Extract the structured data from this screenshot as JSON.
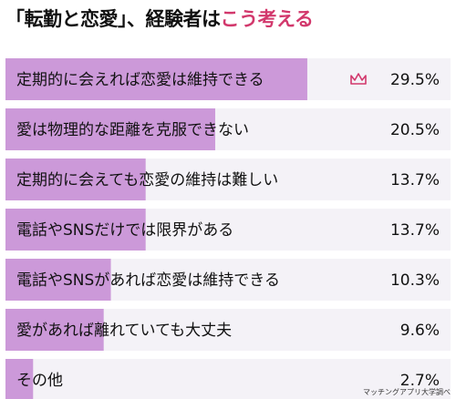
{
  "title": {
    "part1": "「転勤と恋愛」、経験者は",
    "part2": "こう考える"
  },
  "source": "マッチングアプリ大学調べ",
  "colors": {
    "bar_fill": "#cc99d9",
    "bar_track": "#f4f2f7",
    "accent": "#d2386c"
  },
  "chart_data": {
    "type": "bar",
    "orientation": "horizontal",
    "categories": [
      "定期的に会えれば恋愛は維持できる",
      "愛は物理的な距離を克服できない",
      "定期的に会えても恋愛の維持は難しい",
      "電話やSNSだけでは限界がある",
      "電話やSNSがあれば恋愛は維持できる",
      "愛があれば離れていても大丈夫",
      "その他"
    ],
    "values": [
      29.5,
      20.5,
      13.7,
      13.7,
      10.3,
      9.6,
      2.7
    ],
    "value_labels": [
      "29.5%",
      "20.5%",
      "13.7%",
      "13.7%",
      "10.3%",
      "9.6%",
      "2.7%"
    ],
    "top_marker_icon": "crown-icon",
    "xlim": [
      0,
      43.5
    ]
  }
}
